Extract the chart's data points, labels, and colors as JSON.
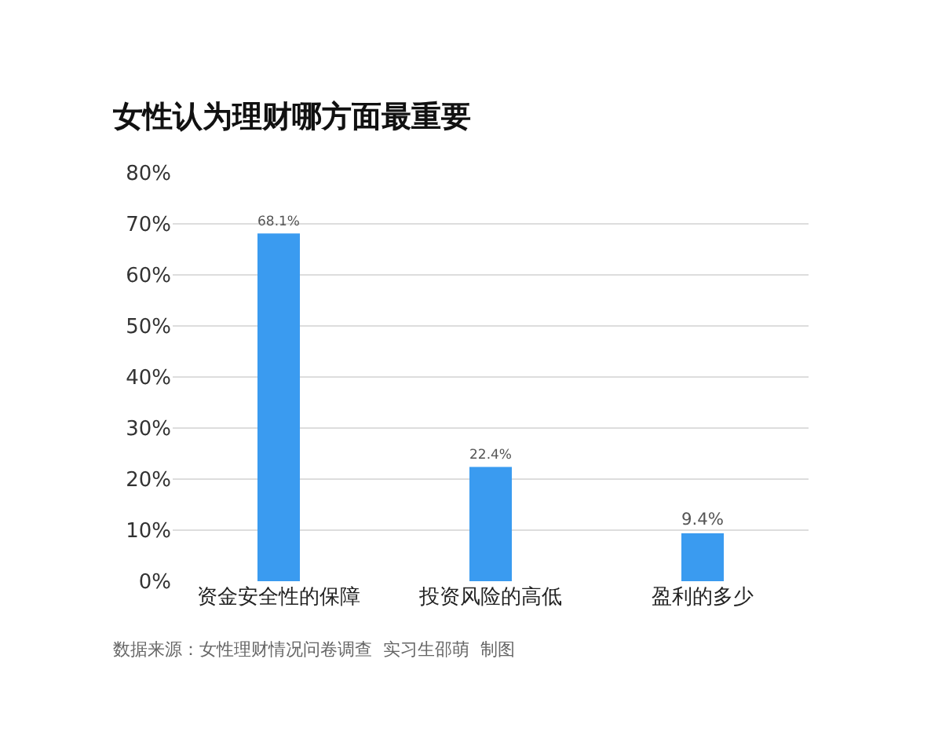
{
  "chart_data": {
    "type": "bar",
    "title": "女性认为理财哪方面最重要",
    "categories": [
      "资金安全性的保障",
      "投资风险的高低",
      "盈利的多少"
    ],
    "values": [
      68.1,
      22.4,
      9.4
    ],
    "value_labels": [
      "68.1%",
      "22.4%",
      "9.4%"
    ],
    "color": "#3a9bf0",
    "ylim": [
      0,
      80
    ],
    "yticks": [
      {
        "value": 0,
        "label": "0%"
      },
      {
        "value": 10,
        "label": "10%"
      },
      {
        "value": 20,
        "label": "20%"
      },
      {
        "value": 30,
        "label": "30%"
      },
      {
        "value": 40,
        "label": "40%"
      },
      {
        "value": 50,
        "label": "50%"
      },
      {
        "value": 60,
        "label": "60%"
      },
      {
        "value": 70,
        "label": "70%"
      },
      {
        "value": 80,
        "label": "80%"
      }
    ],
    "grid": "y",
    "annotations": [
      "数据来源：女性理财情况问卷调查  实习生邵萌  制图"
    ]
  }
}
